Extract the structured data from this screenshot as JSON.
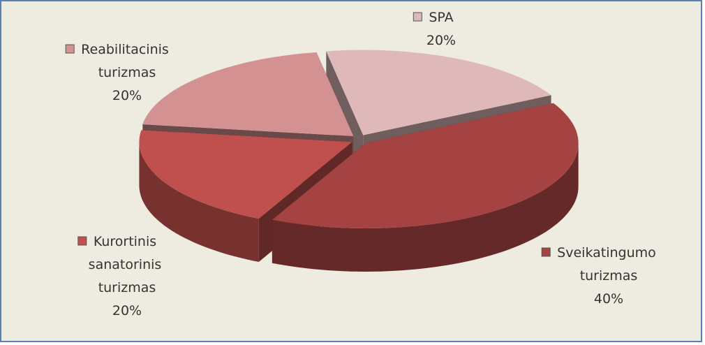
{
  "chart_data": {
    "type": "pie3d",
    "categories": [
      "SPA",
      "Sveikatingumo turizmas",
      "Kurortinis sanatorinis turizmas",
      "Reabilitacinis turizmas"
    ],
    "values": [
      20,
      40,
      20,
      20
    ],
    "value_labels": [
      "20%",
      "40%",
      "20%",
      "20%"
    ],
    "colors": [
      "#dfb9ba",
      "#a54242",
      "#c0504d",
      "#d49192"
    ]
  }
}
